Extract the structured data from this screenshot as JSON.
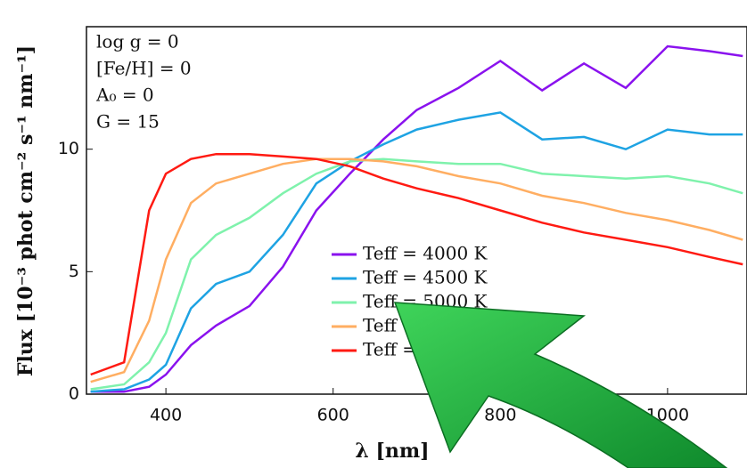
{
  "chart_data": {
    "type": "line",
    "y_label": "Flux [10⁻³ phot cm⁻² s⁻¹ nm⁻¹]",
    "x_label": "λ [nm]",
    "annotations": [
      "log g = 0",
      "[Fe/H] = 0",
      "A₀ = 0",
      "G = 15"
    ],
    "x": [
      310,
      350,
      380,
      400,
      430,
      460,
      500,
      540,
      580,
      620,
      660,
      700,
      750,
      800,
      850,
      900,
      950,
      1000,
      1050,
      1090
    ],
    "series": [
      {
        "name": "Teff = 4000 K",
        "color": "#8a12ee",
        "values": [
          0.1,
          0.1,
          0.3,
          0.8,
          2.0,
          2.8,
          3.6,
          5.2,
          7.5,
          9.0,
          10.4,
          11.6,
          12.5,
          13.6,
          12.4,
          13.5,
          12.5,
          14.2,
          14.0,
          13.8
        ]
      },
      {
        "name": "Teff = 4500 K",
        "color": "#1ea3e3",
        "values": [
          0.1,
          0.2,
          0.6,
          1.2,
          3.5,
          4.5,
          5.0,
          6.5,
          8.6,
          9.5,
          10.2,
          10.8,
          11.2,
          11.5,
          10.4,
          10.5,
          10.0,
          10.8,
          10.6,
          10.6
        ]
      },
      {
        "name": "Teff = 5000 K",
        "color": "#7ff2ac",
        "values": [
          0.2,
          0.4,
          1.3,
          2.5,
          5.5,
          6.5,
          7.2,
          8.2,
          9.0,
          9.5,
          9.6,
          9.5,
          9.4,
          9.4,
          9.0,
          8.9,
          8.8,
          8.9,
          8.6,
          8.2
        ]
      },
      {
        "name": "Teff = 5500 K",
        "color": "#ffae62",
        "values": [
          0.5,
          0.9,
          3.0,
          5.5,
          7.8,
          8.6,
          9.0,
          9.4,
          9.6,
          9.6,
          9.5,
          9.3,
          8.9,
          8.6,
          8.1,
          7.8,
          7.4,
          7.1,
          6.7,
          6.3
        ]
      },
      {
        "name": "Teff = 6000 K",
        "color": "#ff1a12",
        "values": [
          0.8,
          1.3,
          7.5,
          9.0,
          9.6,
          9.8,
          9.8,
          9.7,
          9.6,
          9.3,
          8.8,
          8.4,
          8.0,
          7.5,
          7.0,
          6.6,
          6.3,
          6.0,
          5.6,
          5.3
        ]
      }
    ],
    "xlim": [
      305,
      1095
    ],
    "ylim": [
      0,
      15
    ],
    "xticks": [
      400,
      600,
      800,
      1000
    ],
    "yticks": [
      0,
      5,
      10
    ]
  }
}
